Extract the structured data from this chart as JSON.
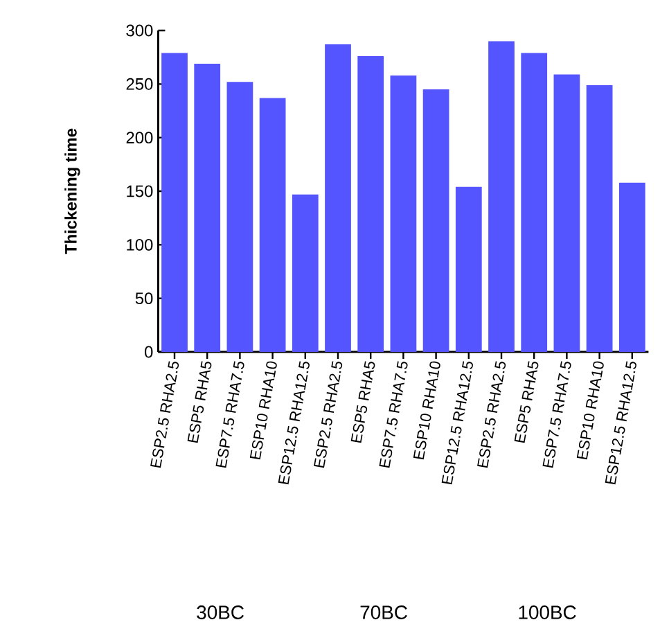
{
  "chart_data": {
    "type": "bar",
    "ylabel": "Thickening time",
    "categories": [
      "ESP2.5 RHA2.5",
      "ESP5 RHA5",
      "ESP7.5 RHA7.5",
      "ESP10 RHA10",
      "ESP12.5 RHA12.5",
      "ESP2.5 RHA2.5",
      "ESP5 RHA5",
      "ESP7.5 RHA7.5",
      "ESP10 RHA10",
      "ESP12.5 RHA12.5",
      "ESP2.5 RHA2.5",
      "ESP5 RHA5",
      "ESP7.5 RHA7.5",
      "ESP10 RHA10",
      "ESP12.5 RHA12.5"
    ],
    "values": [
      279,
      269,
      252,
      237,
      147,
      287,
      276,
      258,
      245,
      154,
      290,
      279,
      259,
      249,
      158
    ],
    "color": "#5555ff",
    "ylim": [
      0,
      300
    ],
    "yticks": [
      0,
      50,
      100,
      150,
      200,
      250,
      300
    ],
    "grid": false,
    "annotations": [
      "30BC",
      "70BC",
      "100BC"
    ]
  }
}
